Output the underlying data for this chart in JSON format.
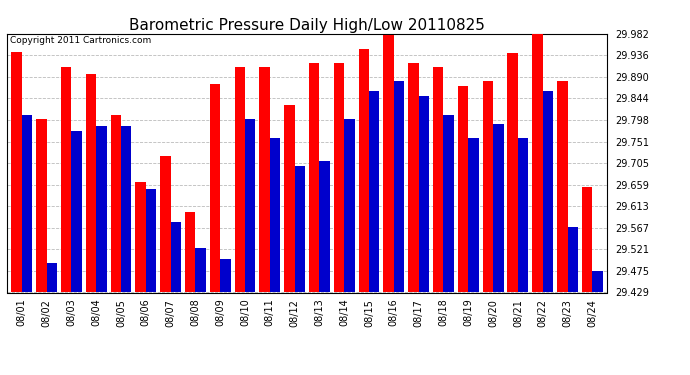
{
  "title": "Barometric Pressure Daily High/Low 20110825",
  "copyright": "Copyright 2011 Cartronics.com",
  "dates": [
    "08/01",
    "08/02",
    "08/03",
    "08/04",
    "08/05",
    "08/06",
    "08/07",
    "08/08",
    "08/09",
    "08/10",
    "08/11",
    "08/12",
    "08/13",
    "08/14",
    "08/15",
    "08/16",
    "08/17",
    "08/18",
    "08/19",
    "08/20",
    "08/21",
    "08/22",
    "08/23",
    "08/24"
  ],
  "highs": [
    29.942,
    29.8,
    29.91,
    29.895,
    29.808,
    29.665,
    29.72,
    29.6,
    29.875,
    29.91,
    29.91,
    29.83,
    29.92,
    29.92,
    29.95,
    29.98,
    29.92,
    29.91,
    29.87,
    29.88,
    29.94,
    29.995,
    29.88,
    29.655
  ],
  "lows": [
    29.808,
    29.492,
    29.775,
    29.785,
    29.785,
    29.65,
    29.58,
    29.525,
    29.5,
    29.8,
    29.76,
    29.7,
    29.71,
    29.8,
    29.86,
    29.88,
    29.85,
    29.808,
    29.76,
    29.79,
    29.76,
    29.86,
    29.57,
    29.475
  ],
  "bar_width": 0.42,
  "high_color": "#ff0000",
  "low_color": "#0000cc",
  "background_color": "#ffffff",
  "grid_color": "#bbbbbb",
  "yticks": [
    29.429,
    29.475,
    29.521,
    29.567,
    29.613,
    29.659,
    29.705,
    29.751,
    29.798,
    29.844,
    29.89,
    29.936,
    29.982
  ],
  "ymin": 29.429,
  "ymax": 29.982,
  "title_fontsize": 11,
  "tick_fontsize": 7,
  "copyright_fontsize": 6.5
}
